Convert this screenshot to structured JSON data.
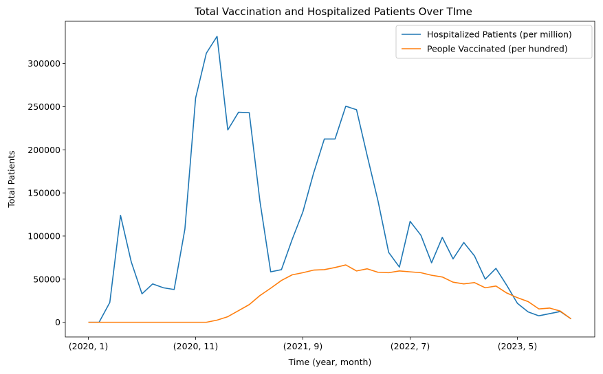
{
  "chart_data": {
    "type": "line",
    "title": "Total Vaccination and Hospitalized Patients Over TIme",
    "xlabel": "Time (year, month)",
    "ylabel": "Total Patients",
    "x": [
      "(2020, 1)",
      "(2020, 2)",
      "(2020, 3)",
      "(2020, 4)",
      "(2020, 5)",
      "(2020, 6)",
      "(2020, 7)",
      "(2020, 8)",
      "(2020, 9)",
      "(2020, 10)",
      "(2020, 11)",
      "(2020, 12)",
      "(2021, 1)",
      "(2021, 2)",
      "(2021, 3)",
      "(2021, 4)",
      "(2021, 5)",
      "(2021, 6)",
      "(2021, 7)",
      "(2021, 8)",
      "(2021, 9)",
      "(2021, 10)",
      "(2021, 11)",
      "(2021, 12)",
      "(2022, 1)",
      "(2022, 2)",
      "(2022, 3)",
      "(2022, 4)",
      "(2022, 5)",
      "(2022, 6)",
      "(2022, 7)",
      "(2022, 8)",
      "(2022, 9)",
      "(2022, 10)",
      "(2022, 11)",
      "(2022, 12)",
      "(2023, 1)",
      "(2023, 2)",
      "(2023, 3)",
      "(2023, 4)",
      "(2023, 5)",
      "(2023, 6)",
      "(2023, 7)",
      "(2023, 8)",
      "(2023, 9)",
      "(2023, 10)"
    ],
    "xticks": [
      "(2020, 1)",
      "(2020, 11)",
      "(2021, 9)",
      "(2022, 7)",
      "(2023, 5)"
    ],
    "yticks": [
      0,
      50000,
      100000,
      150000,
      200000,
      250000,
      300000
    ],
    "ylim": [
      -17000,
      349000
    ],
    "grid": false,
    "legend_position": "top-right",
    "series": [
      {
        "name": "Hospitalized Patients (per million)",
        "color": "#1f77b4",
        "values": [
          0,
          0,
          23000,
          124000,
          70000,
          33000,
          44500,
          40000,
          38000,
          108000,
          260000,
          312000,
          331500,
          223000,
          243500,
          243000,
          140000,
          58500,
          61000,
          96000,
          128000,
          173000,
          212500,
          212500,
          250500,
          246500,
          193000,
          141000,
          81000,
          64000,
          117000,
          101000,
          69000,
          98500,
          73500,
          92500,
          77000,
          50000,
          62500,
          43000,
          22000,
          12000,
          7500,
          10000,
          12500,
          4000
        ]
      },
      {
        "name": "People Vaccinated (per hundred)",
        "color": "#ff7f0e",
        "values": [
          0,
          0,
          0,
          0,
          0,
          0,
          0,
          0,
          0,
          0,
          0,
          0,
          2500,
          6500,
          13500,
          20500,
          31000,
          39500,
          48500,
          55000,
          57500,
          60500,
          61000,
          63500,
          66500,
          59500,
          62000,
          58000,
          57500,
          59500,
          58500,
          57500,
          54500,
          52500,
          46500,
          44500,
          46000,
          40000,
          42000,
          34000,
          28500,
          24000,
          15500,
          16500,
          13000,
          4000
        ]
      }
    ]
  }
}
